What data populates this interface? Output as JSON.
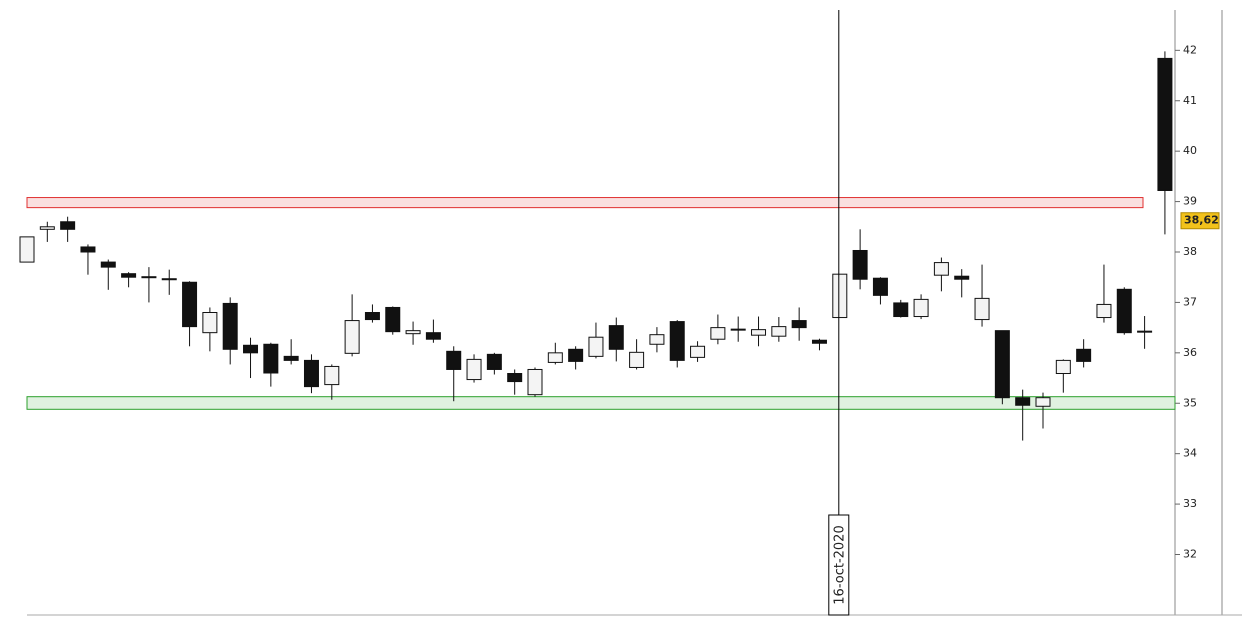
{
  "chart_data": {
    "type": "candlestick",
    "categories": [
      null,
      null,
      null,
      null,
      null,
      null,
      null,
      null,
      null,
      null,
      null,
      null,
      null,
      null,
      null,
      null,
      null,
      null,
      null,
      null,
      null,
      null,
      null,
      null,
      null,
      null,
      null,
      null,
      null,
      null,
      null,
      null,
      null,
      null,
      null,
      null,
      null,
      null,
      null,
      null,
      "16-oct-2020",
      null,
      null,
      null,
      null,
      null,
      null,
      null,
      null,
      null,
      null,
      null,
      null,
      null,
      null,
      null,
      null
    ],
    "open": [
      37.8,
      38.45,
      38.6,
      38.1,
      37.8,
      37.57,
      37.5,
      37.45,
      37.4,
      36.4,
      36.98,
      36.15,
      36.17,
      35.93,
      35.85,
      35.37,
      35.99,
      36.8,
      36.9,
      36.38,
      36.4,
      36.03,
      35.47,
      35.97,
      35.59,
      35.17,
      35.81,
      36.07,
      35.93,
      36.54,
      35.71,
      36.17,
      36.62,
      35.91,
      36.27,
      36.45,
      36.35,
      36.33,
      36.64,
      36.25,
      36.7,
      38.03,
      37.48,
      36.99,
      36.72,
      37.54,
      37.52,
      36.66,
      36.44,
      35.11,
      34.94,
      35.59,
      36.07,
      36.7,
      37.26,
      36.41,
      41.84
    ],
    "high": [
      38.3,
      38.6,
      38.7,
      38.15,
      37.85,
      37.6,
      37.7,
      37.65,
      37.42,
      36.9,
      37.1,
      36.3,
      36.2,
      36.27,
      35.97,
      35.77,
      37.16,
      36.96,
      36.92,
      36.62,
      36.66,
      36.13,
      35.97,
      36.0,
      35.67,
      35.71,
      36.2,
      36.13,
      36.6,
      36.7,
      36.27,
      36.51,
      36.65,
      36.23,
      36.76,
      36.72,
      36.72,
      36.71,
      36.9,
      36.28,
      37.56,
      38.45,
      37.5,
      37.05,
      37.16,
      37.89,
      37.66,
      37.75,
      36.44,
      35.27,
      35.21,
      35.87,
      36.27,
      37.75,
      37.3,
      36.73,
      41.98
    ],
    "low": [
      37.8,
      38.2,
      38.2,
      37.55,
      37.25,
      37.3,
      37.0,
      37.15,
      36.13,
      36.03,
      35.77,
      35.5,
      35.33,
      35.77,
      35.2,
      35.07,
      35.93,
      36.6,
      36.36,
      36.16,
      36.2,
      35.04,
      35.41,
      35.57,
      35.17,
      35.13,
      35.77,
      35.67,
      35.89,
      35.83,
      35.67,
      36.01,
      35.71,
      35.82,
      36.17,
      36.22,
      36.13,
      36.22,
      36.24,
      36.05,
      36.7,
      37.26,
      36.96,
      36.7,
      36.67,
      37.22,
      37.1,
      36.52,
      34.98,
      34.26,
      34.5,
      35.21,
      35.71,
      36.6,
      36.36,
      36.08,
      38.35
    ],
    "close": [
      38.3,
      38.5,
      38.45,
      38.0,
      37.7,
      37.5,
      37.51,
      37.47,
      36.52,
      36.8,
      36.07,
      36.0,
      35.6,
      35.85,
      35.33,
      35.73,
      36.64,
      36.66,
      36.42,
      36.44,
      36.27,
      35.67,
      35.87,
      35.67,
      35.43,
      35.67,
      36.0,
      35.83,
      36.31,
      36.07,
      36.01,
      36.36,
      35.85,
      36.13,
      36.5,
      36.47,
      36.46,
      36.52,
      36.5,
      36.19,
      37.56,
      37.46,
      37.14,
      36.72,
      37.06,
      37.79,
      37.46,
      37.08,
      35.11,
      34.96,
      35.11,
      35.85,
      35.83,
      36.96,
      36.4,
      36.43,
      39.22
    ],
    "up_color": "#f4f4f4",
    "down_color": "#111111",
    "ylim": [
      30.8,
      42.8
    ],
    "yticks": [
      32,
      33,
      34,
      35,
      36,
      37,
      38,
      39,
      40,
      41,
      42
    ],
    "bands": [
      {
        "from": 38.88,
        "to": 39.08,
        "color": "#e03030"
      },
      {
        "from": 34.88,
        "to": 35.13,
        "color": "#2ca02c"
      }
    ],
    "last_price": {
      "value": 38.62,
      "label": "38,62"
    }
  }
}
